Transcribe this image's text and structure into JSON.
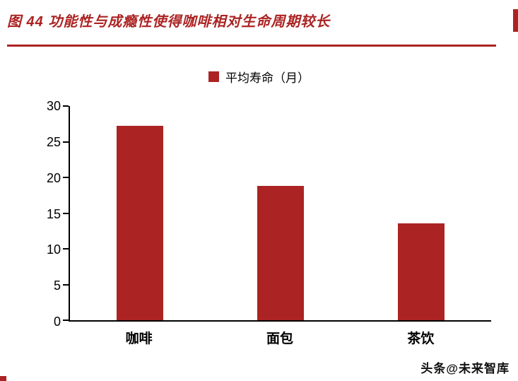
{
  "figure": {
    "title": "图 44 功能性与成瘾性使得咖啡相对生命周期较长",
    "watermark": "头条@未来智库"
  },
  "colors": {
    "accent": "#AC2323",
    "bar": "#AC2323",
    "axis": "#000000"
  },
  "chart_data": {
    "type": "bar",
    "title": "图 44 功能性与成瘾性使得咖啡相对生命周期较长",
    "legend": [
      {
        "label": "平均寿命（月）",
        "color": "#AC2323"
      }
    ],
    "legend_position": "top-center",
    "categories": [
      "咖啡",
      "面包",
      "茶饮"
    ],
    "series": [
      {
        "name": "平均寿命（月）",
        "values": [
          27.2,
          18.8,
          13.6
        ]
      }
    ],
    "xlabel": "",
    "ylabel": "",
    "ylim": [
      0,
      30
    ],
    "yticks": [
      0,
      5,
      10,
      15,
      20,
      25,
      30
    ],
    "grid": false
  }
}
